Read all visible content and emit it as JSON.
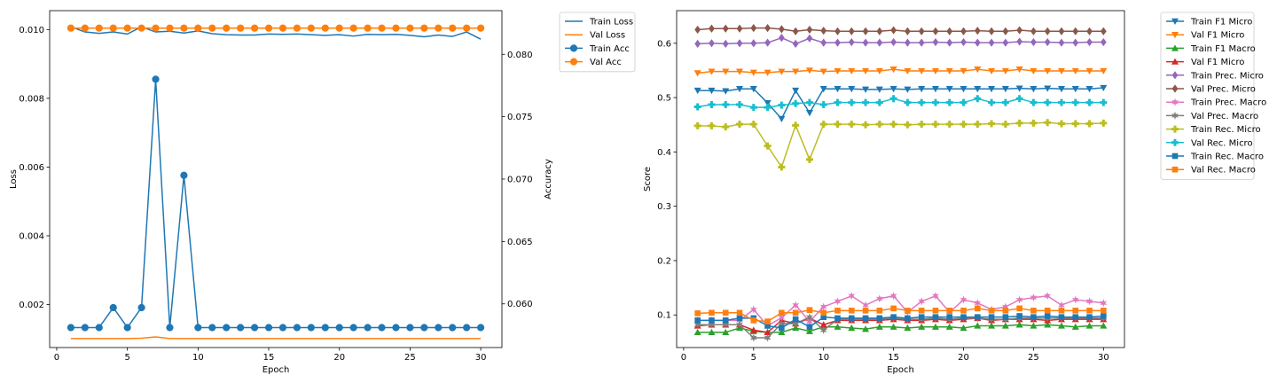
{
  "chart_data": [
    {
      "type": "line",
      "xlabel": "Epoch",
      "ylabel": "Loss",
      "y2label": "Accuracy",
      "xlim": [
        -0.5,
        31.5
      ],
      "ylim": [
        0.00075,
        0.01055
      ],
      "y2lim": [
        0.0565,
        0.0835
      ],
      "xticks": [
        0,
        5,
        10,
        15,
        20,
        25,
        30
      ],
      "yticks": [
        0.002,
        0.004,
        0.006,
        0.008,
        0.01
      ],
      "ytick_labels": [
        "0.002",
        "0.004",
        "0.006",
        "0.008",
        "0.010"
      ],
      "y2ticks": [
        0.06,
        0.065,
        0.07,
        0.075,
        0.08
      ],
      "y2tick_labels": [
        "0.060",
        "0.065",
        "0.070",
        "0.075",
        "0.080"
      ],
      "grid": false,
      "legend_placement": "outside-top-right",
      "x": [
        1,
        2,
        3,
        4,
        5,
        6,
        7,
        8,
        9,
        10,
        11,
        12,
        13,
        14,
        15,
        16,
        17,
        18,
        19,
        20,
        21,
        22,
        23,
        24,
        25,
        26,
        27,
        28,
        29,
        30
      ],
      "series": [
        {
          "name": "Train Loss",
          "axis": "left",
          "color": "#1f77b4",
          "marker": "none",
          "values": [
            0.01008,
            0.00993,
            0.00989,
            0.00993,
            0.00987,
            0.01008,
            0.00993,
            0.00995,
            0.0099,
            0.00996,
            0.00988,
            0.00985,
            0.00984,
            0.00984,
            0.00987,
            0.00986,
            0.00987,
            0.00985,
            0.00983,
            0.00985,
            0.00981,
            0.00986,
            0.00985,
            0.00986,
            0.00983,
            0.00979,
            0.00984,
            0.0098,
            0.00993,
            0.00972
          ]
        },
        {
          "name": "Val Loss",
          "axis": "left",
          "color": "#ff7f0e",
          "marker": "none",
          "values": [
            0.00101,
            0.00101,
            0.00101,
            0.00101,
            0.00101,
            0.00102,
            0.00106,
            0.00101,
            0.00101,
            0.00101,
            0.00101,
            0.00101,
            0.00101,
            0.00101,
            0.00101,
            0.00101,
            0.00101,
            0.00101,
            0.00101,
            0.00101,
            0.00101,
            0.00101,
            0.00101,
            0.00101,
            0.00101,
            0.00101,
            0.00101,
            0.00101,
            0.00101,
            0.00101
          ]
        },
        {
          "name": "Train Acc",
          "axis": "right",
          "color": "#1f77b4",
          "marker": "circle",
          "values": [
            0.0581,
            0.0581,
            0.0581,
            0.0597,
            0.0581,
            0.0597,
            0.078,
            0.0581,
            0.0703,
            0.0581,
            0.0581,
            0.0581,
            0.0581,
            0.0581,
            0.0581,
            0.0581,
            0.0581,
            0.0581,
            0.0581,
            0.0581,
            0.0581,
            0.0581,
            0.0581,
            0.0581,
            0.0581,
            0.0581,
            0.0581,
            0.0581,
            0.0581,
            0.0581
          ]
        },
        {
          "name": "Val Acc",
          "axis": "right",
          "color": "#ff7f0e",
          "marker": "circle",
          "values": [
            0.0821,
            0.0821,
            0.0821,
            0.0821,
            0.0821,
            0.0821,
            0.0821,
            0.0821,
            0.0821,
            0.0821,
            0.0821,
            0.0821,
            0.0821,
            0.0821,
            0.0821,
            0.0821,
            0.0821,
            0.0821,
            0.0821,
            0.0821,
            0.0821,
            0.0821,
            0.0821,
            0.0821,
            0.0821,
            0.0821,
            0.0821,
            0.0821,
            0.0821,
            0.0821
          ]
        }
      ]
    },
    {
      "type": "line",
      "xlabel": "Epoch",
      "ylabel": "Score",
      "xlim": [
        -0.5,
        31.5
      ],
      "ylim": [
        0.04,
        0.66
      ],
      "xticks": [
        0,
        5,
        10,
        15,
        20,
        25,
        30
      ],
      "yticks": [
        0.1,
        0.2,
        0.3,
        0.4,
        0.5,
        0.6
      ],
      "ytick_labels": [
        "0.1",
        "0.2",
        "0.3",
        "0.4",
        "0.5",
        "0.6"
      ],
      "grid": false,
      "legend_placement": "outside-top-right",
      "x": [
        1,
        2,
        3,
        4,
        5,
        6,
        7,
        8,
        9,
        10,
        11,
        12,
        13,
        14,
        15,
        16,
        17,
        18,
        19,
        20,
        21,
        22,
        23,
        24,
        25,
        26,
        27,
        28,
        29,
        30
      ],
      "series": [
        {
          "name": "Train F1 Micro",
          "color": "#1f77b4",
          "marker": "triangle-down",
          "values": [
            0.513,
            0.513,
            0.512,
            0.516,
            0.516,
            0.49,
            0.461,
            0.513,
            0.472,
            0.516,
            0.516,
            0.516,
            0.515,
            0.515,
            0.516,
            0.515,
            0.516,
            0.516,
            0.516,
            0.516,
            0.516,
            0.516,
            0.516,
            0.517,
            0.516,
            0.517,
            0.516,
            0.516,
            0.516,
            0.518
          ]
        },
        {
          "name": "Val F1 Micro",
          "color": "#ff7f0e",
          "marker": "triangle-down",
          "values": [
            0.545,
            0.548,
            0.548,
            0.548,
            0.546,
            0.546,
            0.548,
            0.548,
            0.55,
            0.548,
            0.549,
            0.549,
            0.549,
            0.549,
            0.552,
            0.549,
            0.549,
            0.549,
            0.549,
            0.549,
            0.552,
            0.549,
            0.549,
            0.552,
            0.549,
            0.549,
            0.549,
            0.549,
            0.549,
            0.549
          ]
        },
        {
          "name": "Train F1 Macro",
          "color": "#2ca02c",
          "marker": "triangle-up",
          "values": [
            0.068,
            0.068,
            0.068,
            0.076,
            0.07,
            0.068,
            0.068,
            0.076,
            0.07,
            0.078,
            0.078,
            0.076,
            0.074,
            0.078,
            0.078,
            0.076,
            0.078,
            0.078,
            0.078,
            0.076,
            0.08,
            0.08,
            0.08,
            0.082,
            0.08,
            0.082,
            0.08,
            0.078,
            0.08,
            0.08
          ]
        },
        {
          "name": "Val F1 Micro",
          "color": "#d62728",
          "marker": "triangle-up",
          "values": [
            0.08,
            0.082,
            0.082,
            0.082,
            0.072,
            0.068,
            0.09,
            0.084,
            0.094,
            0.082,
            0.09,
            0.09,
            0.09,
            0.09,
            0.092,
            0.09,
            0.09,
            0.092,
            0.09,
            0.092,
            0.094,
            0.09,
            0.092,
            0.092,
            0.092,
            0.09,
            0.092,
            0.092,
            0.092,
            0.092
          ]
        },
        {
          "name": "Train Prec. Micro",
          "color": "#9467bd",
          "marker": "diamond",
          "values": [
            0.599,
            0.6,
            0.599,
            0.6,
            0.6,
            0.601,
            0.61,
            0.599,
            0.609,
            0.601,
            0.601,
            0.602,
            0.601,
            0.601,
            0.602,
            0.601,
            0.601,
            0.602,
            0.601,
            0.602,
            0.601,
            0.601,
            0.601,
            0.603,
            0.602,
            0.602,
            0.601,
            0.601,
            0.602,
            0.602
          ]
        },
        {
          "name": "Val Prec. Micro",
          "color": "#8c564b",
          "marker": "diamond",
          "values": [
            0.625,
            0.627,
            0.627,
            0.627,
            0.628,
            0.628,
            0.626,
            0.622,
            0.625,
            0.623,
            0.622,
            0.622,
            0.622,
            0.622,
            0.624,
            0.622,
            0.622,
            0.622,
            0.622,
            0.622,
            0.623,
            0.622,
            0.622,
            0.624,
            0.622,
            0.622,
            0.622,
            0.622,
            0.622,
            0.622
          ]
        },
        {
          "name": "Train Prec. Macro",
          "color": "#e377c2",
          "marker": "star",
          "values": [
            0.09,
            0.09,
            0.09,
            0.09,
            0.11,
            0.08,
            0.095,
            0.118,
            0.088,
            0.115,
            0.125,
            0.135,
            0.118,
            0.13,
            0.135,
            0.105,
            0.125,
            0.135,
            0.105,
            0.128,
            0.122,
            0.11,
            0.115,
            0.128,
            0.132,
            0.135,
            0.118,
            0.128,
            0.125,
            0.122
          ]
        },
        {
          "name": "Val Prec. Macro",
          "color": "#7f7f7f",
          "marker": "star",
          "values": [
            0.082,
            0.082,
            0.082,
            0.082,
            0.058,
            0.058,
            0.084,
            0.084,
            0.096,
            0.072,
            0.092,
            0.092,
            0.092,
            0.092,
            0.094,
            0.092,
            0.092,
            0.094,
            0.092,
            0.094,
            0.094,
            0.092,
            0.092,
            0.094,
            0.094,
            0.094,
            0.094,
            0.094,
            0.094,
            0.094
          ]
        },
        {
          "name": "Train Rec. Micro",
          "color": "#bcbd22",
          "marker": "plus",
          "values": [
            0.448,
            0.448,
            0.446,
            0.451,
            0.451,
            0.411,
            0.372,
            0.449,
            0.386,
            0.451,
            0.451,
            0.451,
            0.45,
            0.451,
            0.451,
            0.45,
            0.451,
            0.451,
            0.451,
            0.451,
            0.451,
            0.452,
            0.451,
            0.453,
            0.453,
            0.454,
            0.452,
            0.452,
            0.452,
            0.453
          ]
        },
        {
          "name": "Val Rec. Micro",
          "color": "#17becf",
          "marker": "plus",
          "values": [
            0.483,
            0.487,
            0.487,
            0.487,
            0.482,
            0.482,
            0.486,
            0.489,
            0.491,
            0.487,
            0.491,
            0.491,
            0.491,
            0.491,
            0.498,
            0.491,
            0.491,
            0.491,
            0.491,
            0.491,
            0.498,
            0.491,
            0.491,
            0.498,
            0.491,
            0.491,
            0.491,
            0.491,
            0.491,
            0.491
          ]
        },
        {
          "name": "Train Rec. Macro",
          "color": "#1f77b4",
          "marker": "square",
          "values": [
            0.09,
            0.09,
            0.09,
            0.094,
            0.094,
            0.08,
            0.076,
            0.092,
            0.078,
            0.096,
            0.094,
            0.094,
            0.094,
            0.094,
            0.096,
            0.094,
            0.096,
            0.096,
            0.096,
            0.096,
            0.096,
            0.096,
            0.096,
            0.098,
            0.096,
            0.098,
            0.096,
            0.096,
            0.096,
            0.098
          ]
        },
        {
          "name": "Val Rec. Macro",
          "color": "#ff7f0e",
          "marker": "square",
          "values": [
            0.103,
            0.104,
            0.104,
            0.104,
            0.09,
            0.088,
            0.104,
            0.104,
            0.109,
            0.104,
            0.108,
            0.108,
            0.108,
            0.108,
            0.112,
            0.108,
            0.108,
            0.108,
            0.108,
            0.108,
            0.112,
            0.108,
            0.108,
            0.112,
            0.108,
            0.108,
            0.108,
            0.108,
            0.108,
            0.108
          ]
        }
      ]
    }
  ]
}
